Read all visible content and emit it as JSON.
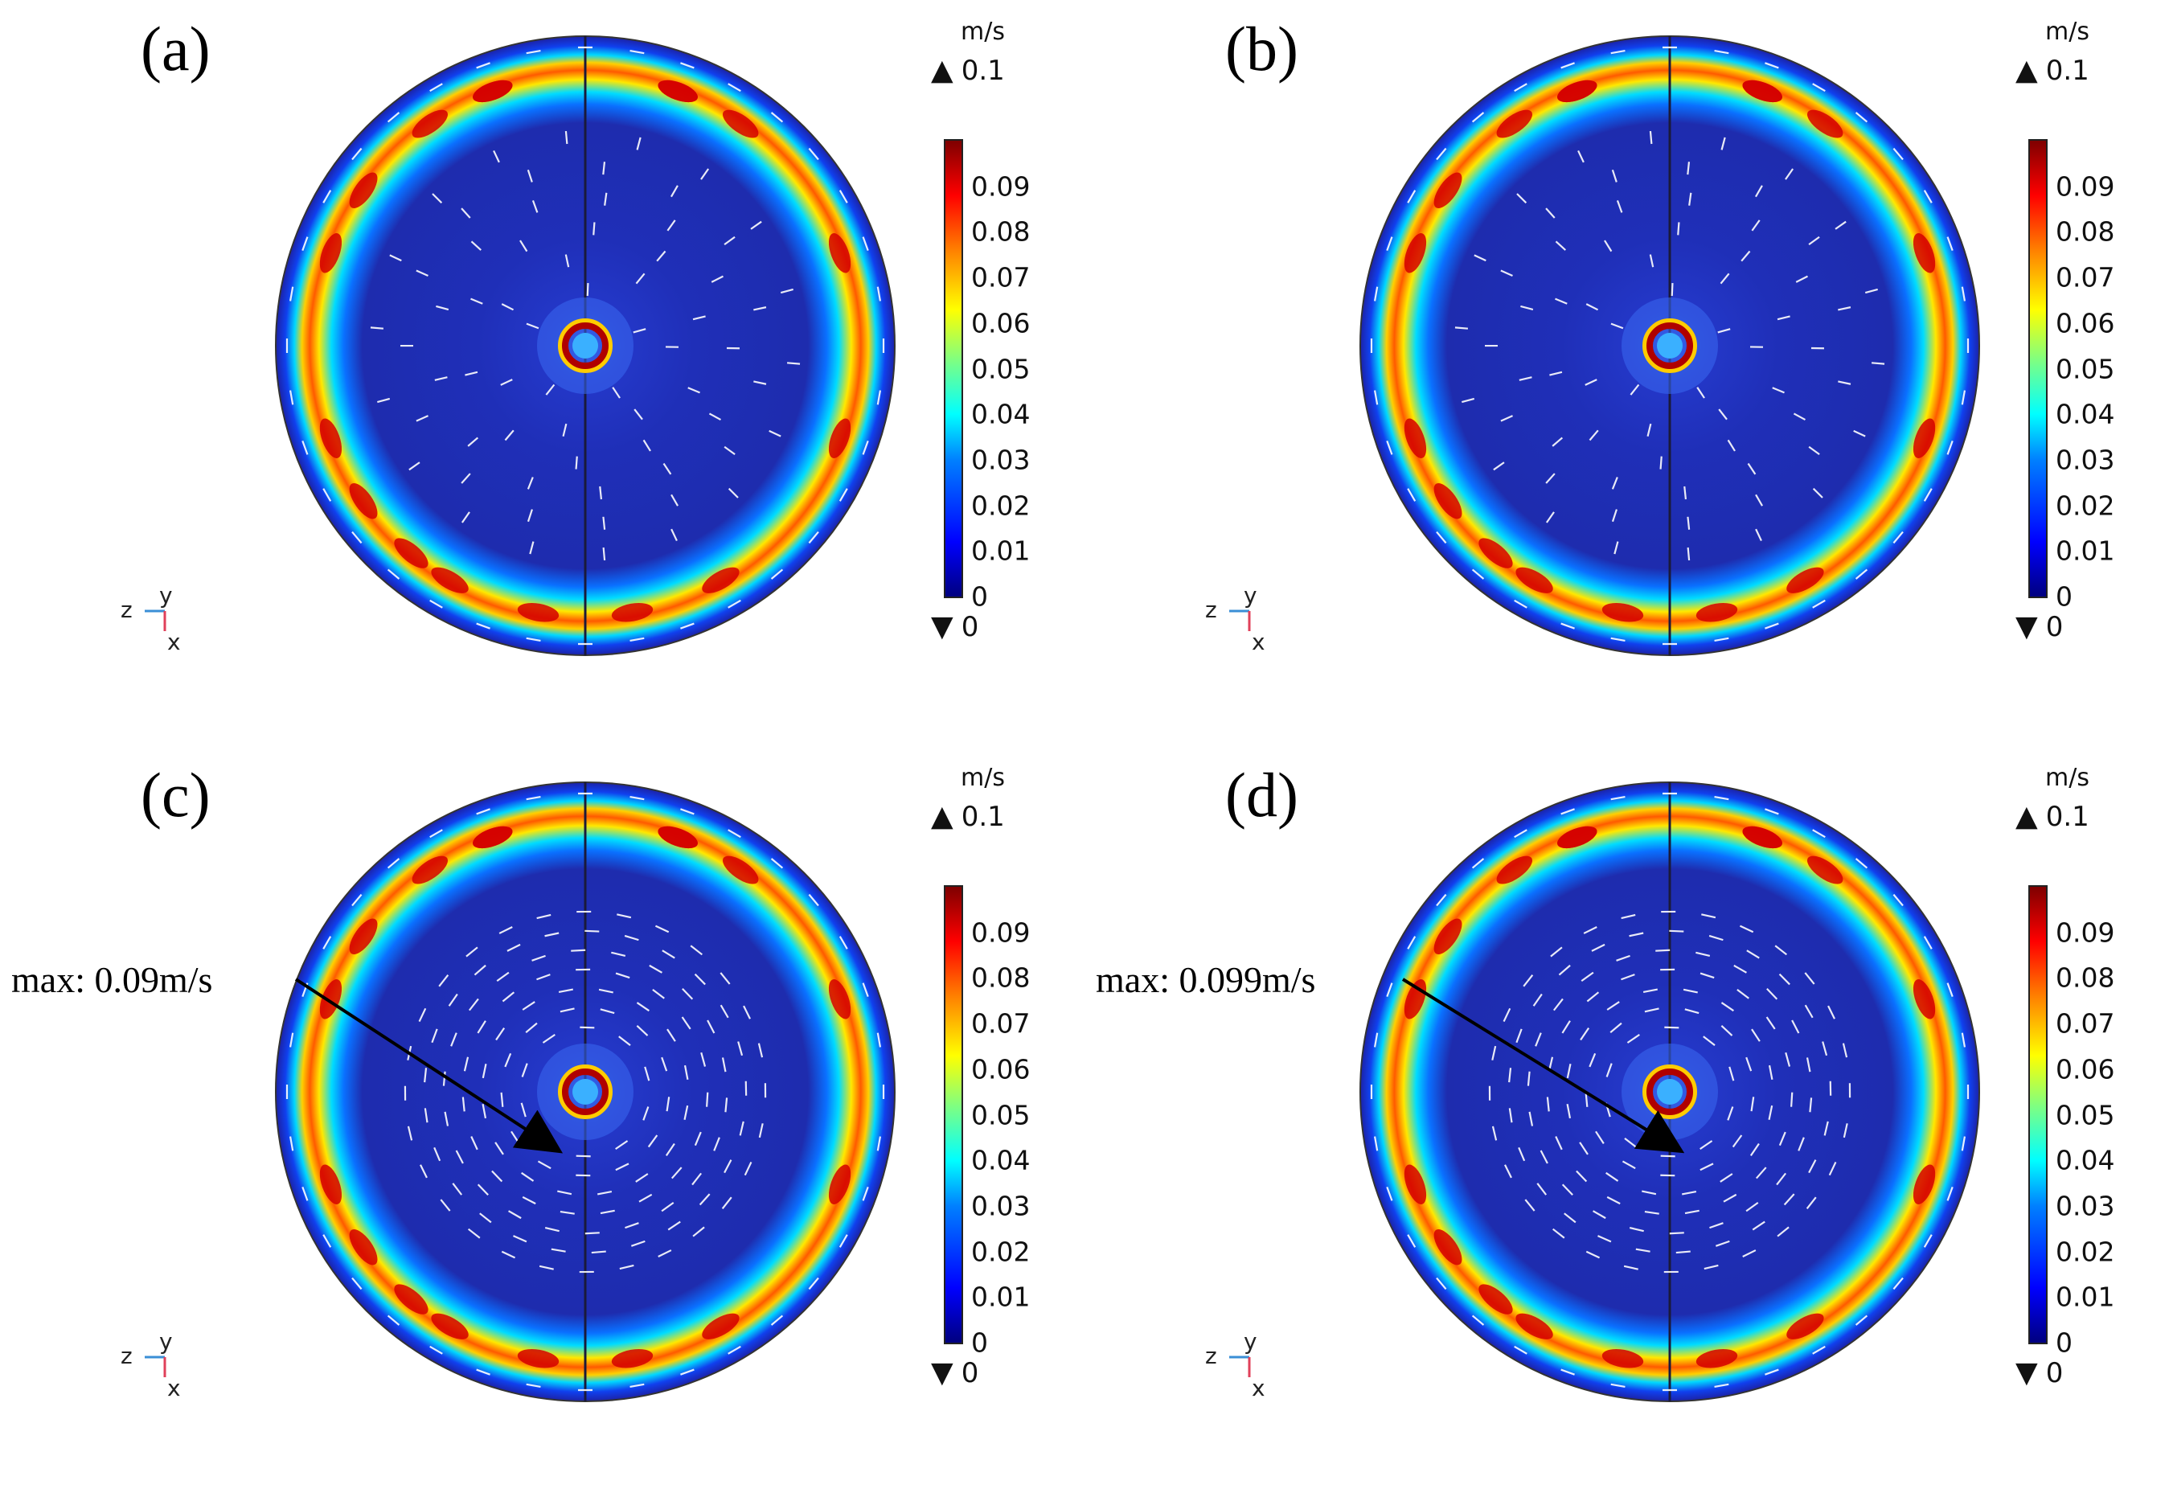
{
  "chart_data": [
    {
      "type": "heatmap",
      "panel_label": "(a)",
      "unit": "m/s",
      "max_label": "0.1",
      "min_label": "0",
      "colorbar_ticks": [
        "0.09",
        "0.08",
        "0.07",
        "0.06",
        "0.05",
        "0.04",
        "0.03",
        "0.02",
        "0.01",
        "0"
      ],
      "colorbar_values": [
        0.09,
        0.08,
        0.07,
        0.06,
        0.05,
        0.04,
        0.03,
        0.02,
        0.01,
        0
      ],
      "range": [
        0,
        0.1
      ],
      "axes_labels": {
        "h": "z",
        "up": "y",
        "down": "x"
      },
      "flow_pattern": "radial"
    },
    {
      "type": "heatmap",
      "panel_label": "(b)",
      "unit": "m/s",
      "max_label": "0.1",
      "min_label": "0",
      "colorbar_ticks": [
        "0.09",
        "0.08",
        "0.07",
        "0.06",
        "0.05",
        "0.04",
        "0.03",
        "0.02",
        "0.01",
        "0"
      ],
      "colorbar_values": [
        0.09,
        0.08,
        0.07,
        0.06,
        0.05,
        0.04,
        0.03,
        0.02,
        0.01,
        0
      ],
      "range": [
        0,
        0.1
      ],
      "axes_labels": {
        "h": "z",
        "up": "y",
        "down": "x"
      },
      "flow_pattern": "radial"
    },
    {
      "type": "heatmap",
      "panel_label": "(c)",
      "unit": "m/s",
      "max_label": "0.1",
      "min_label": "0",
      "colorbar_ticks": [
        "0.09",
        "0.08",
        "0.07",
        "0.06",
        "0.05",
        "0.04",
        "0.03",
        "0.02",
        "0.01",
        "0"
      ],
      "colorbar_values": [
        0.09,
        0.08,
        0.07,
        0.06,
        0.05,
        0.04,
        0.03,
        0.02,
        0.01,
        0
      ],
      "range": [
        0,
        0.1
      ],
      "axes_labels": {
        "h": "z",
        "up": "y",
        "down": "x"
      },
      "flow_pattern": "swirl",
      "annotation": "max: 0.09m/s"
    },
    {
      "type": "heatmap",
      "panel_label": "(d)",
      "unit": "m/s",
      "max_label": "0.1",
      "min_label": "0",
      "colorbar_ticks": [
        "0.09",
        "0.08",
        "0.07",
        "0.06",
        "0.05",
        "0.04",
        "0.03",
        "0.02",
        "0.01",
        "0"
      ],
      "colorbar_values": [
        0.09,
        0.08,
        0.07,
        0.06,
        0.05,
        0.04,
        0.03,
        0.02,
        0.01,
        0
      ],
      "range": [
        0,
        0.1
      ],
      "axes_labels": {
        "h": "z",
        "up": "y",
        "down": "x"
      },
      "flow_pattern": "swirl",
      "annotation": "max: 0.099m/s"
    }
  ],
  "colors": {
    "deep_blue": "#1a1aa8",
    "inner_blue": "#2538c8",
    "ring_cyan": "#00e0ff",
    "ring_yellow": "#ffe600",
    "ring_red": "#e00000",
    "dark_red": "#7f0000"
  }
}
